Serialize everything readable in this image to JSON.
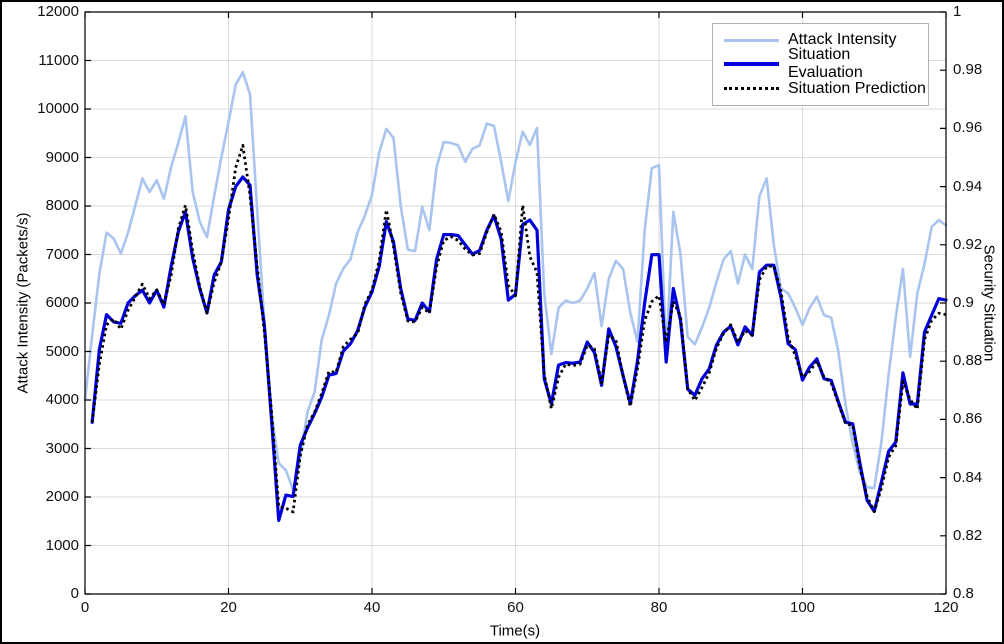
{
  "page": {
    "background": "#ffffff",
    "frame_border_color": "#000000"
  },
  "legend": {
    "position": "top-right",
    "items": [
      {
        "label": "Attack Intensity",
        "style": "solid",
        "color": "#a9c4ee",
        "thickness": 3
      },
      {
        "label": "Situation Evaluation",
        "style": "solid",
        "color": "#0000da",
        "thickness": 4
      },
      {
        "label": "Situation Prediction",
        "style": "dotted",
        "color": "#000000",
        "thickness": 3
      }
    ]
  },
  "chart_data": {
    "type": "line",
    "title": "",
    "x_label": "Time(s)",
    "grid": true,
    "grid_color": "#dadada",
    "axis_color": "#000000",
    "x_axis": {
      "min": 0,
      "max": 120,
      "tick_step": 20,
      "tick_labels": [
        "0",
        "20",
        "40",
        "60",
        "80",
        "100",
        "120"
      ]
    },
    "left_axis": {
      "label": "Attack Intensity (Packets/s)",
      "min": 0,
      "max": 12000,
      "tick_step": 1000,
      "tick_labels": [
        "0",
        "1000",
        "2000",
        "3000",
        "4000",
        "5000",
        "6000",
        "7000",
        "8000",
        "9000",
        "10000",
        "11000",
        "12000"
      ]
    },
    "right_axis": {
      "label": "Security Situation",
      "min": 0.8,
      "max": 1,
      "tick_step": 0.02,
      "tick_labels": [
        "0.8",
        "0.82",
        "0.84",
        "0.86",
        "0.88",
        "0.9",
        "0.92",
        "0.94",
        "0.96",
        "0.98",
        "1"
      ]
    },
    "time_start": 0,
    "time_step": 1,
    "series": [
      {
        "name": "Attack Intensity",
        "axis": "left",
        "color": "#a9c4ee",
        "line": "solid",
        "width": 2.6,
        "values": [
          4000,
          5340,
          6600,
          7450,
          7330,
          7020,
          7450,
          8000,
          8565,
          8290,
          8530,
          8150,
          8800,
          9300,
          9850,
          8300,
          7670,
          7360,
          8200,
          9000,
          9730,
          10500,
          10760,
          10300,
          7900,
          5600,
          3700,
          2700,
          2550,
          2150,
          2800,
          3750,
          4165,
          5250,
          5750,
          6400,
          6710,
          6900,
          7465,
          7800,
          8230,
          9100,
          9590,
          9400,
          8000,
          7100,
          7070,
          7980,
          7500,
          8800,
          9320,
          9300,
          9250,
          8910,
          9180,
          9250,
          9700,
          9650,
          8910,
          8100,
          8900,
          9530,
          9260,
          9610,
          6200,
          4950,
          5900,
          6050,
          6000,
          6050,
          6300,
          6620,
          5520,
          6500,
          6870,
          6700,
          5800,
          5200,
          7500,
          8780,
          8845,
          4930,
          7880,
          7000,
          5300,
          5150,
          5500,
          5900,
          6430,
          6900,
          7070,
          6400,
          7000,
          6700,
          8200,
          8570,
          7200,
          6300,
          6200,
          5900,
          5550,
          5900,
          6130,
          5750,
          5700,
          5000,
          3900,
          3100,
          2500,
          2200,
          2185,
          3130,
          4515,
          5710,
          6700,
          4890,
          6200,
          6800,
          7570,
          7710,
          7600
        ]
      },
      {
        "name": "Situation Evaluation",
        "axis": "right",
        "color": "#0000da",
        "line": "solid",
        "width": 3.2,
        "values": [
          null,
          0.859,
          0.884,
          0.896,
          0.8935,
          0.893,
          0.9,
          0.9025,
          0.9044,
          0.9,
          0.9044,
          0.8986,
          0.9125,
          0.9244,
          0.9313,
          0.9155,
          0.9049,
          0.8966,
          0.9096,
          0.9141,
          0.932,
          0.94,
          0.9433,
          0.9405,
          0.9096,
          0.8924,
          0.8598,
          0.8253,
          0.834,
          0.8335,
          0.8511,
          0.857,
          0.862,
          0.8677,
          0.8752,
          0.8758,
          0.8835,
          0.886,
          0.8905,
          0.8986,
          0.9038,
          0.9125,
          0.928,
          0.921,
          0.905,
          0.8945,
          0.894,
          0.9,
          0.897,
          0.915,
          0.9235,
          0.9235,
          0.9232,
          0.92,
          0.9168,
          0.918,
          0.925,
          0.93,
          0.922,
          0.901,
          0.903,
          0.927,
          0.9285,
          0.925,
          0.874,
          0.8653,
          0.8787,
          0.8795,
          0.8793,
          0.8797,
          0.8866,
          0.883,
          0.8717,
          0.8911,
          0.885,
          0.875,
          0.8653,
          0.88,
          0.9,
          0.9166,
          0.9166,
          0.8797,
          0.905,
          0.894,
          0.8704,
          0.8683,
          0.874,
          0.8774,
          0.8855,
          0.89,
          0.892,
          0.8856,
          0.8918,
          0.8889,
          0.9107,
          0.913,
          0.913,
          0.902,
          0.886,
          0.884,
          0.8735,
          0.878,
          0.8808,
          0.874,
          0.8734,
          0.866,
          0.859,
          0.8585,
          0.845,
          0.8322,
          0.8284,
          0.8385,
          0.849,
          0.8522,
          0.876,
          0.8653,
          0.8653,
          0.89,
          0.8958,
          0.9015,
          0.901
        ]
      },
      {
        "name": "Situation Prediction",
        "axis": "right",
        "color": "#000000",
        "line": "dotted",
        "width": 2.8,
        "values": [
          null,
          0.859,
          0.879,
          0.8925,
          0.8945,
          0.891,
          0.8975,
          0.902,
          0.9065,
          0.9015,
          0.9045,
          0.8995,
          0.9095,
          0.9255,
          0.9336,
          0.918,
          0.9055,
          0.8966,
          0.907,
          0.9141,
          0.929,
          0.9465,
          0.9542,
          0.937,
          0.9125,
          0.89,
          0.8625,
          0.83,
          0.8295,
          0.8282,
          0.8475,
          0.858,
          0.8625,
          0.869,
          0.8765,
          0.8762,
          0.885,
          0.8875,
          0.8895,
          0.8995,
          0.9045,
          0.9145,
          0.932,
          0.9193,
          0.9035,
          0.8938,
          0.8935,
          0.8985,
          0.8965,
          0.9125,
          0.9215,
          0.9228,
          0.9215,
          0.9185,
          0.9165,
          0.917,
          0.9243,
          0.9305,
          0.9245,
          0.906,
          0.9025,
          0.9336,
          0.916,
          0.9105,
          0.8755,
          0.8637,
          0.8745,
          0.879,
          0.8785,
          0.879,
          0.8855,
          0.8843,
          0.8725,
          0.889,
          0.8872,
          0.8748,
          0.8645,
          0.8775,
          0.894,
          0.9005,
          0.9025,
          0.8865,
          0.9005,
          0.8955,
          0.8705,
          0.8665,
          0.871,
          0.876,
          0.8845,
          0.8895,
          0.8925,
          0.8865,
          0.8905,
          0.889,
          0.908,
          0.9125,
          0.9128,
          0.904,
          0.888,
          0.882,
          0.8745,
          0.8765,
          0.88,
          0.8745,
          0.8725,
          0.8655,
          0.8585,
          0.858,
          0.8435,
          0.8335,
          0.8283,
          0.8365,
          0.847,
          0.851,
          0.873,
          0.8668,
          0.8635,
          0.8875,
          0.894,
          0.8965,
          0.896
        ]
      }
    ]
  }
}
